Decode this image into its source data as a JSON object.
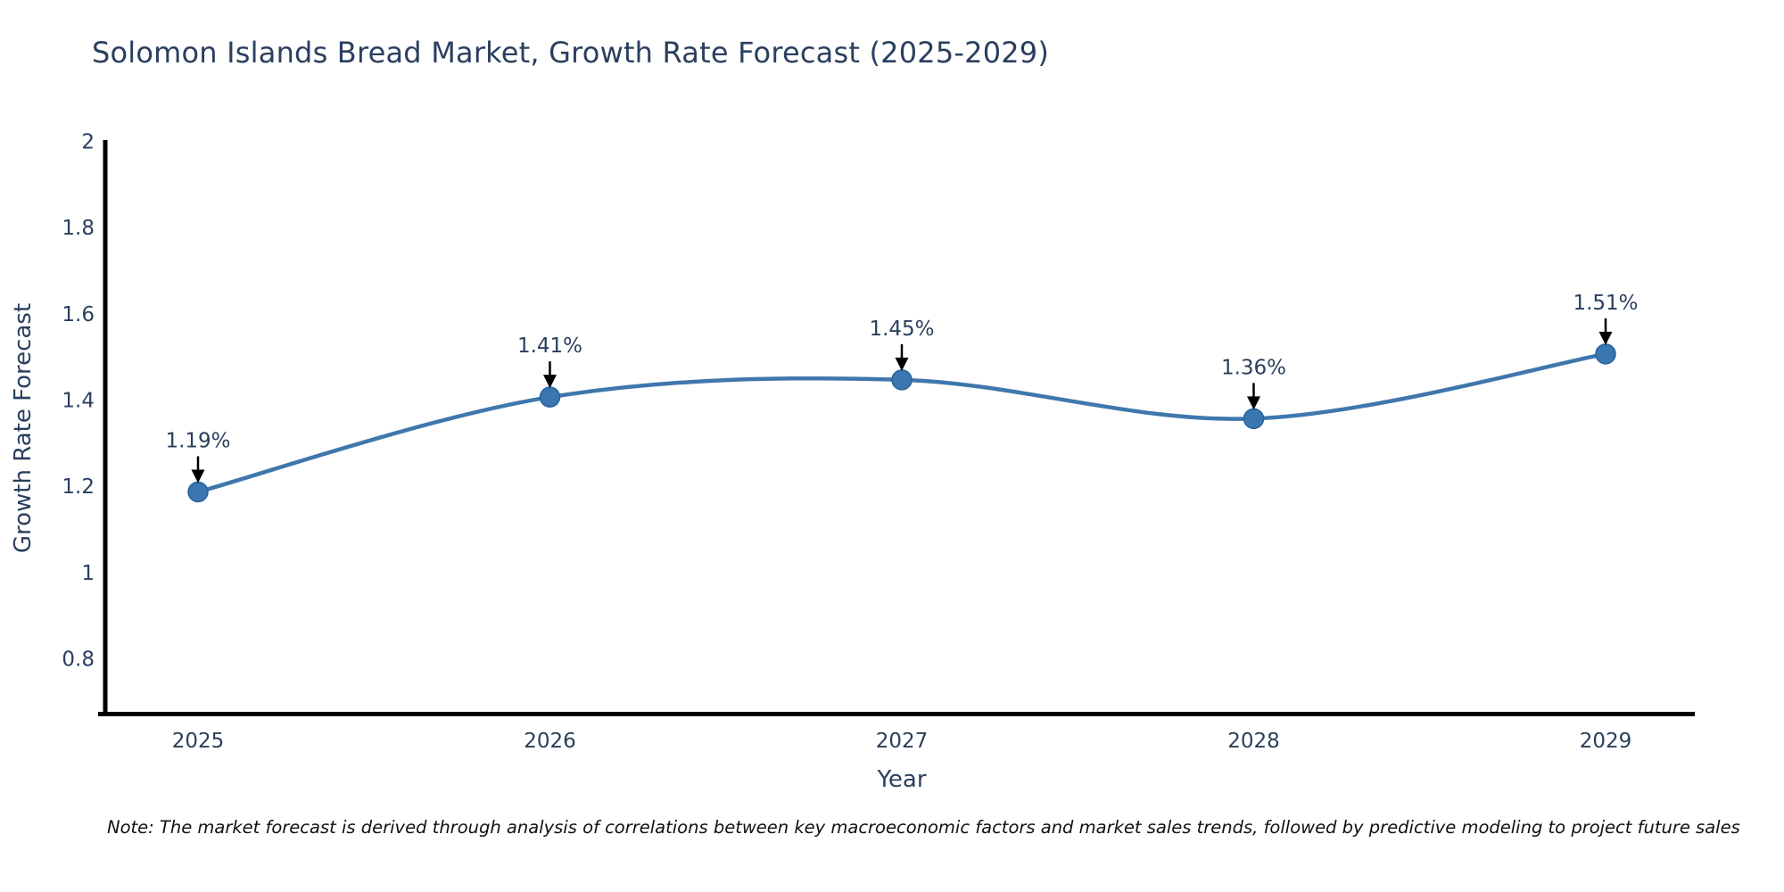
{
  "title": "Solomon Islands Bread Market, Growth Rate Forecast (2025-2029)",
  "note": "Note: The market forecast is derived through analysis of correlations between key macroeconomic factors and market sales trends, followed by predictive modeling to project future sales",
  "colors": {
    "line": "#3f77ad",
    "marker_fill": "#3a76af",
    "marker_edge": "#27639e",
    "text": "#2a3f5f",
    "axis": "#000000",
    "background": "#ffffff"
  },
  "chart_data": {
    "type": "line",
    "title": "Solomon Islands Bread Market, Growth Rate Forecast (2025-2029)",
    "xlabel": "Year",
    "ylabel": "Growth Rate Forecast",
    "x": [
      2025,
      2026,
      2027,
      2028,
      2029
    ],
    "series": [
      {
        "name": "Growth Rate Forecast",
        "values": [
          1.19,
          1.41,
          1.45,
          1.36,
          1.51
        ],
        "point_labels": [
          "1.19%",
          "1.41%",
          "1.45%",
          "1.36%",
          "1.51%"
        ]
      }
    ],
    "yticks": [
      2,
      1.8,
      1.6,
      1.4,
      1.2,
      1,
      0.8
    ],
    "ylim": [
      0.675,
      2.0
    ],
    "line_shape": "spline",
    "grid": false,
    "legend_position": "none",
    "annotations_style": "value label with black down-arrow above each point"
  }
}
